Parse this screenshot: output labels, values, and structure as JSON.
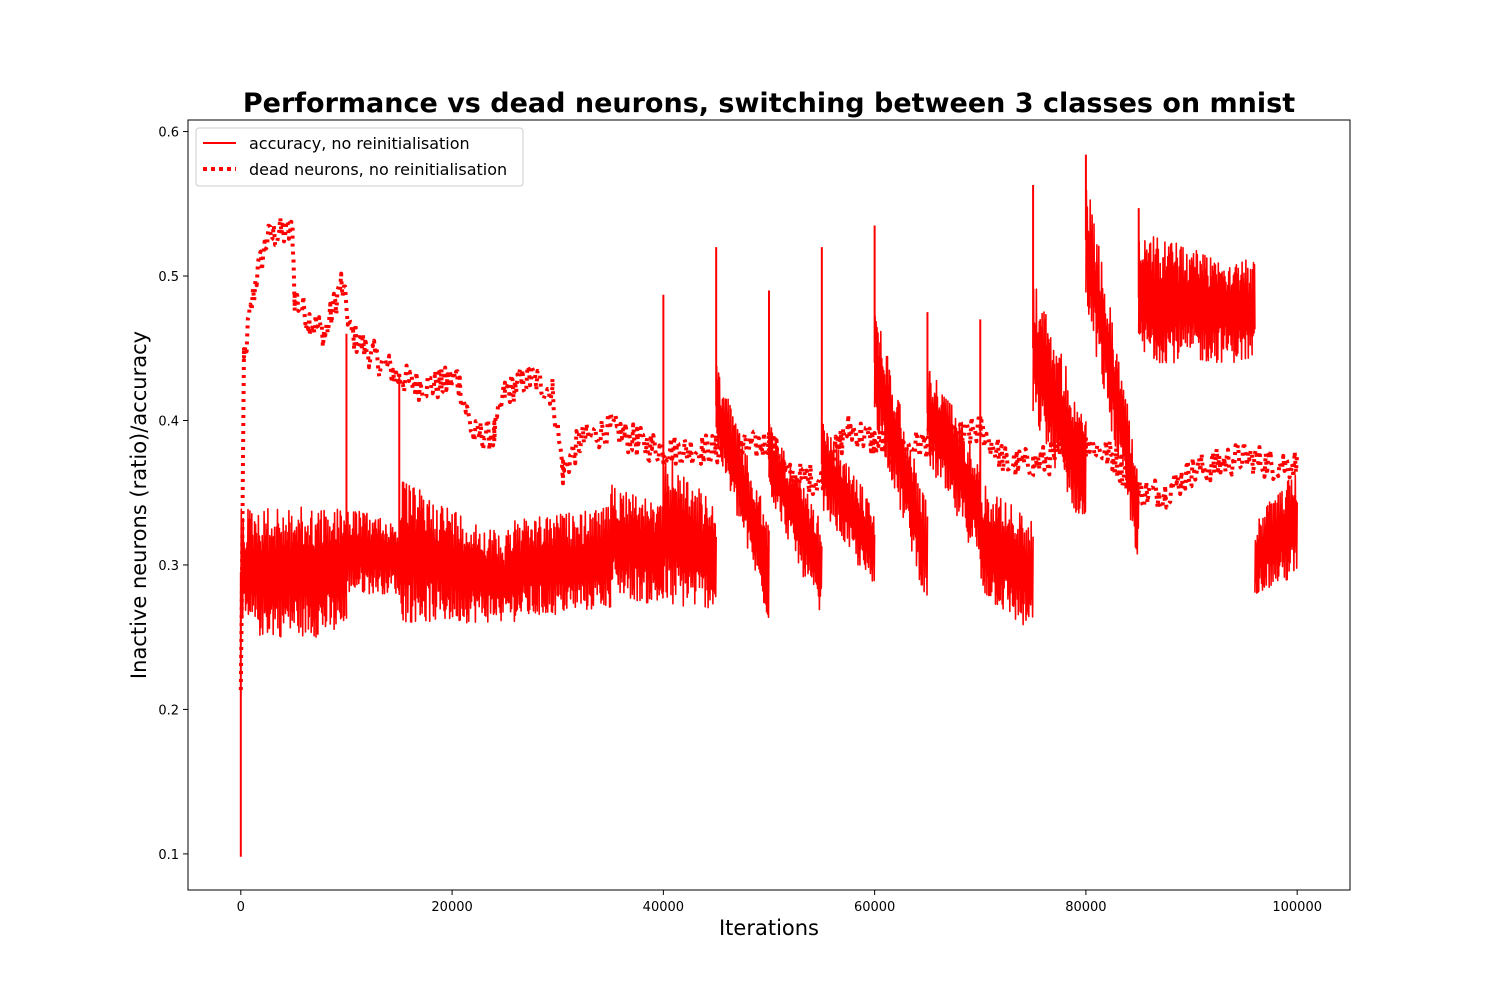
{
  "chart_data": {
    "type": "line",
    "title": "Performance vs dead neurons, switching between 3 classes on mnist",
    "xlabel": "Iterations",
    "ylabel": "Inactive neurons (ratio)/accuracy",
    "xlim": [
      -5000,
      105000
    ],
    "ylim": [
      0.075,
      0.608
    ],
    "x_ticks": [
      0,
      20000,
      40000,
      60000,
      80000,
      100000
    ],
    "x_tick_labels": [
      "0",
      "20000",
      "40000",
      "60000",
      "80000",
      "100000"
    ],
    "y_ticks": [
      0.1,
      0.2,
      0.3,
      0.4,
      0.5,
      0.6
    ],
    "y_tick_labels": [
      "0.1",
      "0.2",
      "0.3",
      "0.4",
      "0.5",
      "0.6"
    ],
    "grid": false,
    "legend_position": "top-left",
    "series": [
      {
        "name": "accuracy, no reinitialisation",
        "style": "solid",
        "color": "#ff0000",
        "segments": [
          {
            "x": [
              0,
              10000
            ],
            "low": [
              0.25,
              0.25
            ],
            "high": [
              0.34,
              0.34
            ]
          },
          {
            "x": [
              10000,
              15000
            ],
            "low": [
              0.28,
              0.28
            ],
            "high": [
              0.34,
              0.33
            ]
          },
          {
            "x": [
              15000,
              25000
            ],
            "low": [
              0.26,
              0.26
            ],
            "high": [
              0.36,
              0.32
            ]
          },
          {
            "x": [
              25000,
              35000
            ],
            "low": [
              0.26,
              0.27
            ],
            "high": [
              0.33,
              0.34
            ]
          },
          {
            "x": [
              35000,
              40000
            ],
            "low": [
              0.28,
              0.27
            ],
            "high": [
              0.36,
              0.34
            ]
          },
          {
            "x": [
              40000,
              45000
            ],
            "low": [
              0.27,
              0.27
            ],
            "high": [
              0.38,
              0.34
            ]
          },
          {
            "x": [
              45000,
              50000
            ],
            "low": [
              0.38,
              0.26
            ],
            "high": [
              0.44,
              0.33
            ]
          },
          {
            "x": [
              50000,
              55000
            ],
            "low": [
              0.35,
              0.26
            ],
            "high": [
              0.4,
              0.33
            ]
          },
          {
            "x": [
              55000,
              60000
            ],
            "low": [
              0.34,
              0.28
            ],
            "high": [
              0.4,
              0.34
            ]
          },
          {
            "x": [
              60000,
              65000
            ],
            "low": [
              0.4,
              0.27
            ],
            "high": [
              0.48,
              0.34
            ]
          },
          {
            "x": [
              65000,
              70000
            ],
            "low": [
              0.37,
              0.3
            ],
            "high": [
              0.44,
              0.38
            ]
          },
          {
            "x": [
              70000,
              75000
            ],
            "low": [
              0.28,
              0.25
            ],
            "high": [
              0.36,
              0.33
            ]
          },
          {
            "x": [
              75000,
              80000
            ],
            "low": [
              0.4,
              0.32
            ],
            "high": [
              0.5,
              0.4
            ]
          },
          {
            "x": [
              80000,
              85000
            ],
            "low": [
              0.48,
              0.3
            ],
            "high": [
              0.57,
              0.37
            ]
          },
          {
            "x": [
              85000,
              96000
            ],
            "low": [
              0.44,
              0.44
            ],
            "high": [
              0.53,
              0.51
            ]
          },
          {
            "x": [
              96000,
              100000
            ],
            "low": [
              0.28,
              0.29
            ],
            "high": [
              0.33,
              0.37
            ]
          }
        ],
        "spikes": [
          {
            "x": 0,
            "y": 0.098
          },
          {
            "x": 10000,
            "y": 0.46
          },
          {
            "x": 15000,
            "y": 0.43
          },
          {
            "x": 40000,
            "y": 0.487
          },
          {
            "x": 45000,
            "y": 0.52
          },
          {
            "x": 50000,
            "y": 0.49
          },
          {
            "x": 55000,
            "y": 0.52
          },
          {
            "x": 60000,
            "y": 0.535
          },
          {
            "x": 65000,
            "y": 0.475
          },
          {
            "x": 70000,
            "y": 0.47
          },
          {
            "x": 75000,
            "y": 0.563
          },
          {
            "x": 80000,
            "y": 0.584
          },
          {
            "x": 85000,
            "y": 0.547
          }
        ]
      },
      {
        "name": "dead neurons, no reinitialisation",
        "style": "dotted",
        "color": "#ff0000",
        "x": [
          0,
          300,
          800,
          1500,
          2500,
          3500,
          4900,
          5100,
          6500,
          8000,
          9500,
          10500,
          12500,
          15000,
          16500,
          19000,
          20500,
          22000,
          24000,
          25000,
          27500,
          29500,
          30500,
          32000,
          35000,
          37500,
          40000,
          42000,
          45000,
          47500,
          50000,
          52000,
          55000,
          57500,
          60000,
          62500,
          65000,
          67500,
          70000,
          72500,
          75000,
          77500,
          80000,
          82500,
          85000,
          87500,
          90000,
          92500,
          95000,
          97500,
          100000
        ],
        "y": [
          0.21,
          0.44,
          0.47,
          0.5,
          0.525,
          0.53,
          0.53,
          0.485,
          0.47,
          0.46,
          0.495,
          0.46,
          0.445,
          0.43,
          0.425,
          0.425,
          0.43,
          0.39,
          0.39,
          0.42,
          0.43,
          0.42,
          0.365,
          0.385,
          0.395,
          0.385,
          0.38,
          0.38,
          0.38,
          0.38,
          0.385,
          0.36,
          0.36,
          0.395,
          0.385,
          0.38,
          0.385,
          0.385,
          0.395,
          0.37,
          0.37,
          0.375,
          0.385,
          0.375,
          0.35,
          0.35,
          0.365,
          0.37,
          0.375,
          0.37,
          0.37
        ]
      }
    ]
  }
}
